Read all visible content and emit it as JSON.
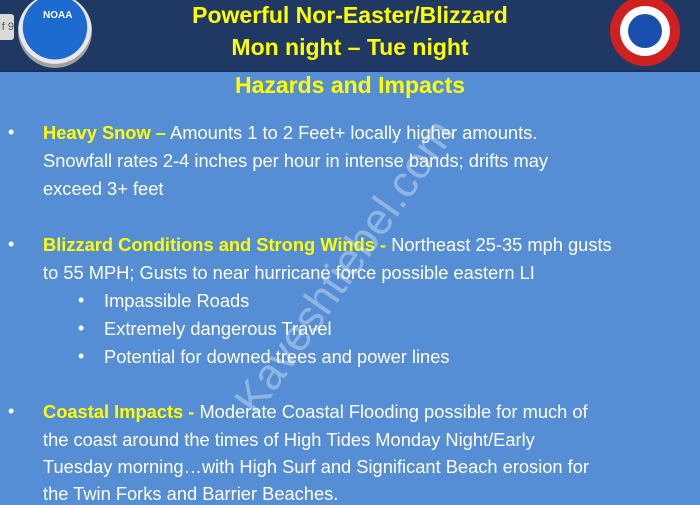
{
  "page_indicator": "f 9",
  "logos": {
    "left": "NOAA",
    "right": "NATIONAL WEATHER SERVICE"
  },
  "title_line1": "Powerful Nor-Easter/Blizzard",
  "title_line2": "Mon night – Tue night",
  "subtitle": "Hazards and Impacts",
  "bullets": [
    {
      "heading": "Heavy Snow –",
      "lines": [
        " Amounts 1 to 2 Feet+ locally higher amounts.",
        "Snowfall rates 2-4 inches per hour in intense bands; drifts may",
        "exceed 3+ feet"
      ]
    },
    {
      "heading": "Blizzard Conditions and Strong Winds  -",
      "lines": [
        " Northeast 25-35 mph gusts",
        "to 55 MPH;  Gusts to near hurricane force possible eastern LI"
      ],
      "sub": [
        "Impassible Roads",
        "Extremely dangerous Travel",
        "Potential for downed trees and power lines"
      ]
    },
    {
      "heading": "Coastal Impacts -",
      "lines": [
        "  Moderate Coastal Flooding possible for much of",
        "the coast around the times of High Tides Monday Night/Early",
        "Tuesday morning…with High Surf and Significant Beach erosion for",
        "the Twin Forks and Barrier Beaches."
      ]
    }
  ],
  "watermark": "Kaveshtiebel.com",
  "colors": {
    "header": "#1f3864",
    "body": "#558ed5",
    "accent": "#ffff00"
  }
}
